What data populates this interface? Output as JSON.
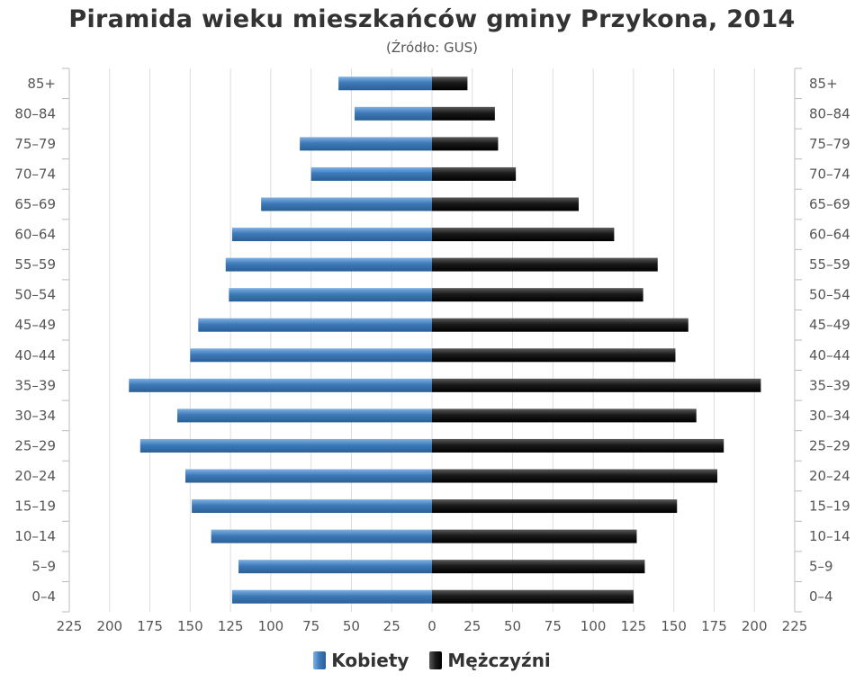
{
  "title": "Piramida wieku mieszkańców gminy Przykona, 2014",
  "subtitle": "(Źródło: GUS)",
  "colors": {
    "female": "#3e7ab8",
    "male": "#1a1a1a",
    "grid": "#dddddd",
    "axis": "#bbbbbb"
  },
  "legend": [
    {
      "label": "Kobiety",
      "color": "#3e7ab8"
    },
    {
      "label": "Mężczyźni",
      "color": "#1a1a1a"
    }
  ],
  "chart_data": {
    "type": "bar",
    "orientation": "horizontal",
    "layout": "population-pyramid",
    "categories": [
      "0–4",
      "5–9",
      "10–14",
      "15–19",
      "20–24",
      "25–29",
      "30–34",
      "35–39",
      "40–44",
      "45–49",
      "50–54",
      "55–59",
      "60–64",
      "65–69",
      "70–74",
      "75–79",
      "80–84",
      "85+"
    ],
    "series": [
      {
        "name": "Kobiety",
        "side": "left",
        "values": [
          124,
          120,
          137,
          149,
          153,
          181,
          158,
          188,
          150,
          145,
          126,
          128,
          124,
          106,
          75,
          82,
          48,
          58
        ]
      },
      {
        "name": "Mężczyźni",
        "side": "right",
        "values": [
          125,
          132,
          127,
          152,
          177,
          181,
          164,
          204,
          151,
          159,
          131,
          140,
          113,
          91,
          52,
          41,
          39,
          22
        ]
      }
    ],
    "xlim": [
      -225,
      225
    ],
    "xticks": [
      -225,
      -200,
      -175,
      -150,
      -125,
      -100,
      -75,
      -50,
      -25,
      0,
      25,
      50,
      75,
      100,
      125,
      150,
      175,
      200,
      225
    ],
    "xtick_labels": [
      "225",
      "200",
      "175",
      "150",
      "125",
      "100",
      "75",
      "50",
      "25",
      "0",
      "25",
      "50",
      "75",
      "100",
      "125",
      "150",
      "175",
      "200",
      "225"
    ],
    "grid": true,
    "legend_position": "bottom-center"
  }
}
